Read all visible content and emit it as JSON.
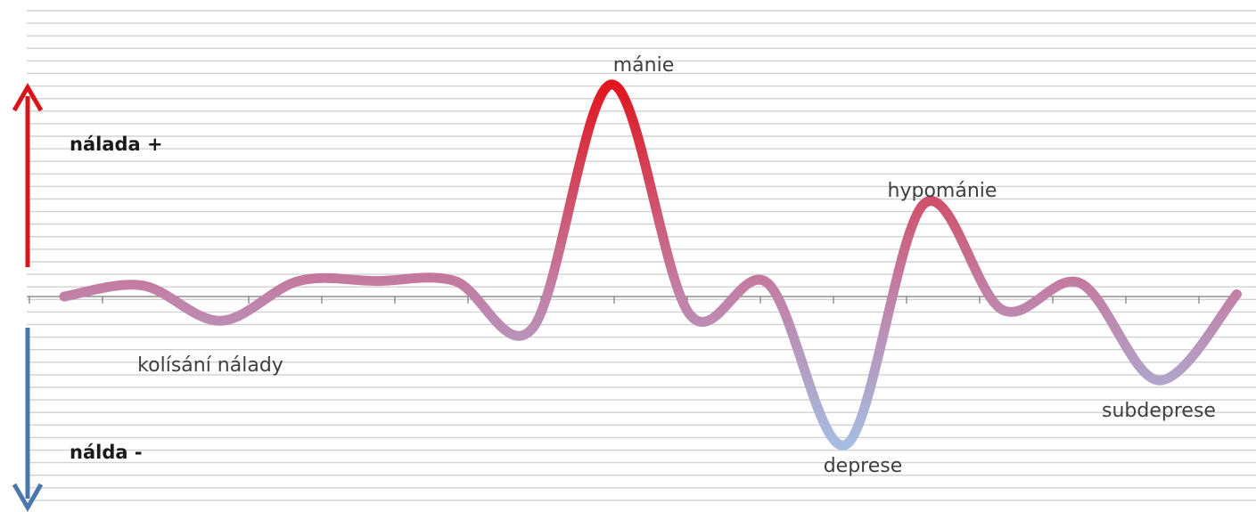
{
  "chart_data": {
    "type": "line",
    "title": "",
    "xlabel": "",
    "ylabel": "",
    "ylim": [
      -1,
      1
    ],
    "grid": true,
    "colors": {
      "high": "#e0161e",
      "middle": "#c27fa6",
      "low": "#a6bce0",
      "up_arrow": "#d9141b",
      "down_arrow": "#4b78ab"
    },
    "mood_up_label": "nálada +",
    "mood_down_label": "nálda -",
    "points": [
      {
        "x": 0.0,
        "y": 0.0
      },
      {
        "x": 1.0,
        "y": 0.05
      },
      {
        "x": 2.0,
        "y": -0.11
      },
      {
        "x": 3.0,
        "y": 0.07
      },
      {
        "x": 4.0,
        "y": 0.07
      },
      {
        "x": 5.0,
        "y": 0.07
      },
      {
        "x": 6.0,
        "y": -0.14,
        "label": ""
      },
      {
        "x": 7.0,
        "y": 0.96
      },
      {
        "x": 8.0,
        "y": -0.08
      },
      {
        "x": 9.0,
        "y": 0.06
      },
      {
        "x": 10.0,
        "y": -0.67
      },
      {
        "x": 11.0,
        "y": 0.42
      },
      {
        "x": 12.0,
        "y": -0.06
      },
      {
        "x": 13.0,
        "y": 0.06
      },
      {
        "x": 14.0,
        "y": -0.38
      },
      {
        "x": 15.0,
        "y": 0.01
      }
    ],
    "annotations": [
      {
        "text": "mánie",
        "x": 7.0,
        "y": 0.96
      },
      {
        "text": "hypománie",
        "x": 11.0,
        "y": 0.42
      },
      {
        "text": "deprese",
        "x": 10.0,
        "y": -0.67
      },
      {
        "text": "subdeprese",
        "x": 14.0,
        "y": -0.38
      },
      {
        "text": "kolísání nálady",
        "x": 2.0,
        "y": -0.11
      }
    ]
  }
}
